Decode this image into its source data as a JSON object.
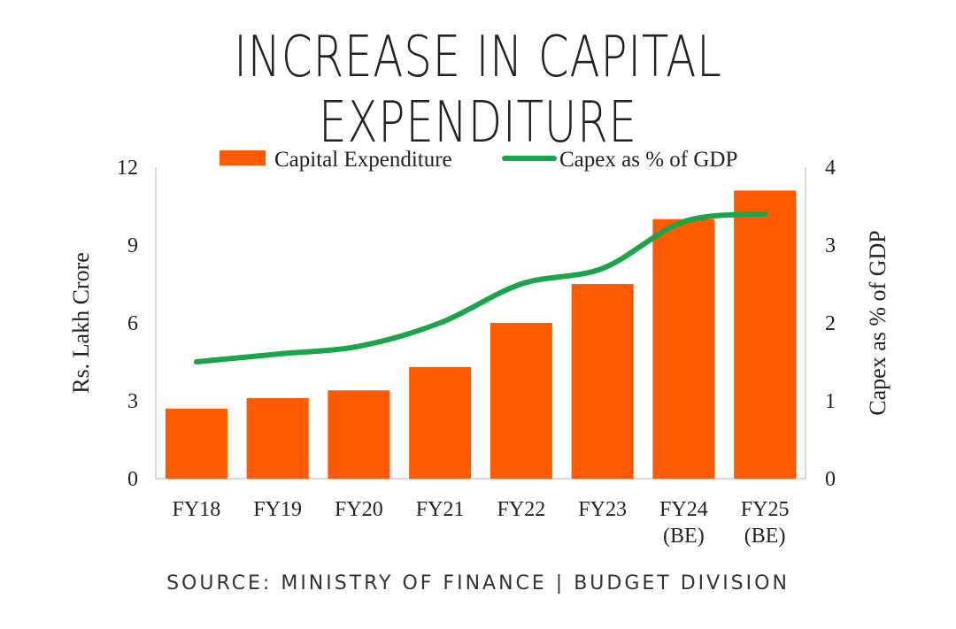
{
  "title": "INCREASE IN CAPITAL EXPENDITURE",
  "source": "SOURCE: MINISTRY OF FINANCE | BUDGET DIVISION",
  "chart_data": {
    "type": "bar+line",
    "categories": [
      "FY18",
      "FY19",
      "FY20",
      "FY21",
      "FY22",
      "FY23",
      "FY24\n(BE)",
      "FY25\n(BE)"
    ],
    "series": [
      {
        "name": "Capital Expenditure",
        "type": "bar",
        "axis": "left",
        "color": "#ff5a00",
        "values": [
          2.7,
          3.1,
          3.4,
          4.3,
          6.0,
          7.5,
          10.0,
          11.1
        ]
      },
      {
        "name": "Capex as % of GDP",
        "type": "line",
        "axis": "right",
        "color": "#1aa54a",
        "values": [
          1.5,
          1.6,
          1.7,
          2.0,
          2.5,
          2.7,
          3.3,
          3.4
        ]
      }
    ],
    "ylabel": "Rs. Lakh Crore",
    "ylabel_right": "Capex as % of GDP",
    "ylim": [
      0,
      12
    ],
    "yticks": [
      0,
      3,
      6,
      9,
      12
    ],
    "ylim_right": [
      0,
      4
    ],
    "yticks_right": [
      0,
      1,
      2,
      3,
      4
    ],
    "grid": false,
    "legend": "top"
  }
}
